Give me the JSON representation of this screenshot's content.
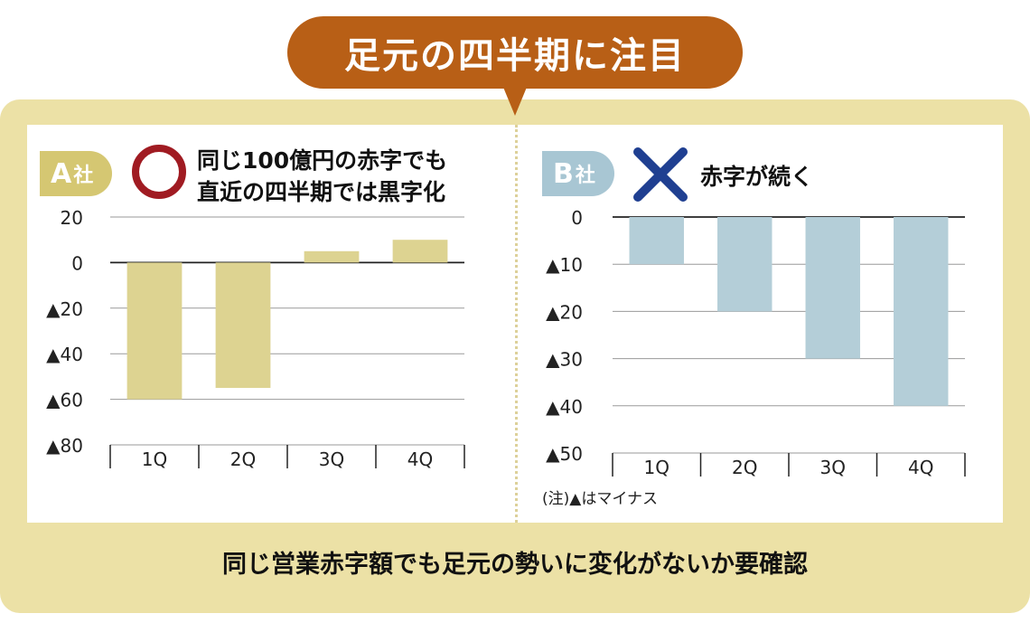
{
  "title": "足元の四半期に注目",
  "footnote": "(注)▲はマイナス",
  "bottom_caption": "同じ営業赤字額でも足元の勢いに変化がないか要確認",
  "colors": {
    "a_bar": "#ddd391",
    "b_bar": "#b4ced8",
    "title_bg": "#b85f16",
    "frame": "#ece1a6",
    "circle": "#a01b22",
    "cross": "#1f3f91"
  },
  "companies": [
    {
      "name_big": "A",
      "name_small": "社",
      "mark": "circle-icon",
      "note_lines": [
        "同じ100億円の赤字でも",
        "直近の四半期では黒字化"
      ]
    },
    {
      "name_big": "B",
      "name_small": "社",
      "mark": "cross-icon",
      "note_lines": [
        "赤字が続く"
      ]
    }
  ],
  "chart_data": [
    {
      "type": "bar",
      "categories": [
        "1Q",
        "2Q",
        "3Q",
        "4Q"
      ],
      "values": [
        -60,
        -55,
        5,
        10
      ],
      "ylim": [
        -80,
        20
      ],
      "yticks": [
        20,
        0,
        -20,
        -40,
        -60,
        -80
      ],
      "ytick_labels": [
        "20",
        "0",
        "▲20",
        "▲40",
        "▲60",
        "▲80"
      ],
      "grid": true
    },
    {
      "type": "bar",
      "categories": [
        "1Q",
        "2Q",
        "3Q",
        "4Q"
      ],
      "values": [
        -10,
        -20,
        -30,
        -40
      ],
      "ylim": [
        -50,
        0
      ],
      "yticks": [
        0,
        -10,
        -20,
        -30,
        -40,
        -50
      ],
      "ytick_labels": [
        "0",
        "▲10",
        "▲20",
        "▲30",
        "▲40",
        "▲50"
      ],
      "grid": true
    }
  ]
}
